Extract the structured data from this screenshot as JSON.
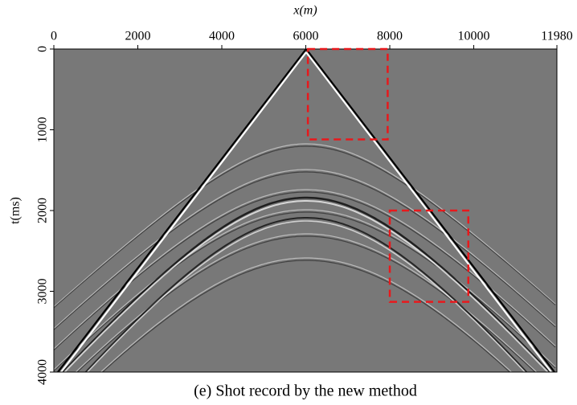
{
  "chart_data": {
    "type": "seismic",
    "xlabel": "x(m)",
    "ylabel": "t(ms)",
    "caption": "(e) Shot record by the new method",
    "xlim": [
      0,
      11980
    ],
    "xticks": [
      0,
      2000,
      4000,
      6000,
      8000,
      10000,
      11980
    ],
    "ylim": [
      0,
      4000
    ],
    "yticks": [
      0,
      1000,
      2000,
      3000,
      4000
    ],
    "boxes": [
      {
        "x": [
          6050,
          7950
        ],
        "y": [
          0,
          1120
        ],
        "color": "#e8191c"
      },
      {
        "x": [
          8000,
          9870
        ],
        "y": [
          2000,
          3130
        ],
        "color": "#e8191c"
      }
    ]
  }
}
